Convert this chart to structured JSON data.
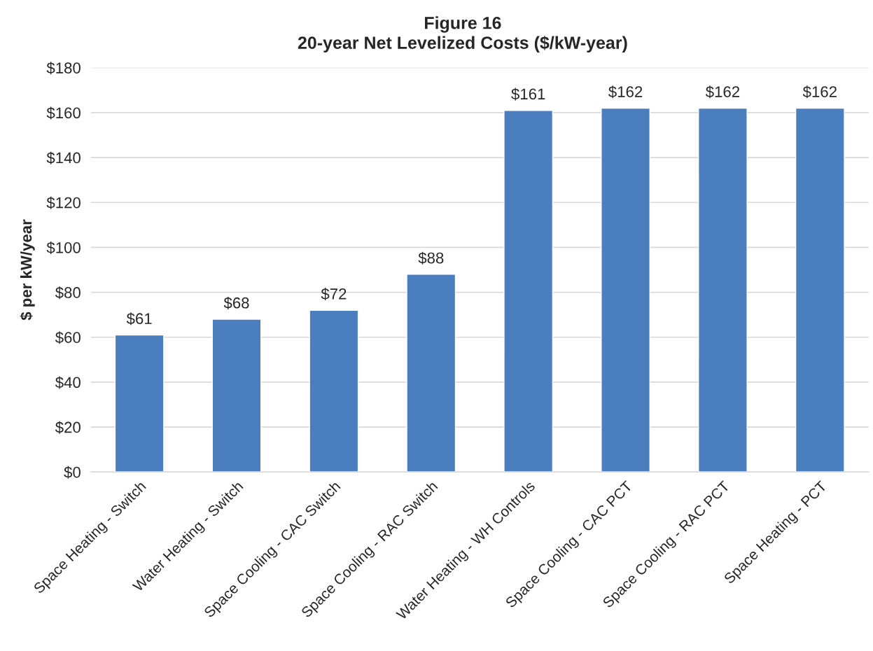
{
  "chart_data": {
    "type": "bar",
    "title": "Figure 16",
    "subtitle": "20-year Net Levelized Costs ($/kW-year)",
    "ylabel": "$ per kW/year",
    "categories": [
      "Space Heating - Switch",
      "Water Heating - Switch",
      "Space Cooling - CAC Switch",
      "Space Cooling - RAC Switch",
      "Water Heating - WH Controls",
      "Space Cooling - CAC PCT",
      "Space Cooling - RAC PCT",
      "Space Heating - PCT"
    ],
    "values": [
      61,
      68,
      72,
      88,
      161,
      162,
      162,
      162
    ],
    "value_labels": [
      "$61",
      "$68",
      "$72",
      "$88",
      "$161",
      "$162",
      "$162",
      "$162"
    ],
    "color": "#4a7ebf",
    "ylim": [
      0,
      180
    ],
    "yticks": [
      {
        "value": 0,
        "label": "$0"
      },
      {
        "value": 20,
        "label": "$20"
      },
      {
        "value": 40,
        "label": "$40"
      },
      {
        "value": 60,
        "label": "$60"
      },
      {
        "value": 80,
        "label": "$80"
      },
      {
        "value": 100,
        "label": "$100"
      },
      {
        "value": 120,
        "label": "$120"
      },
      {
        "value": 140,
        "label": "$140"
      },
      {
        "value": 160,
        "label": "$160"
      },
      {
        "value": 180,
        "label": "$180"
      }
    ],
    "grid": "y",
    "legend": false
  }
}
